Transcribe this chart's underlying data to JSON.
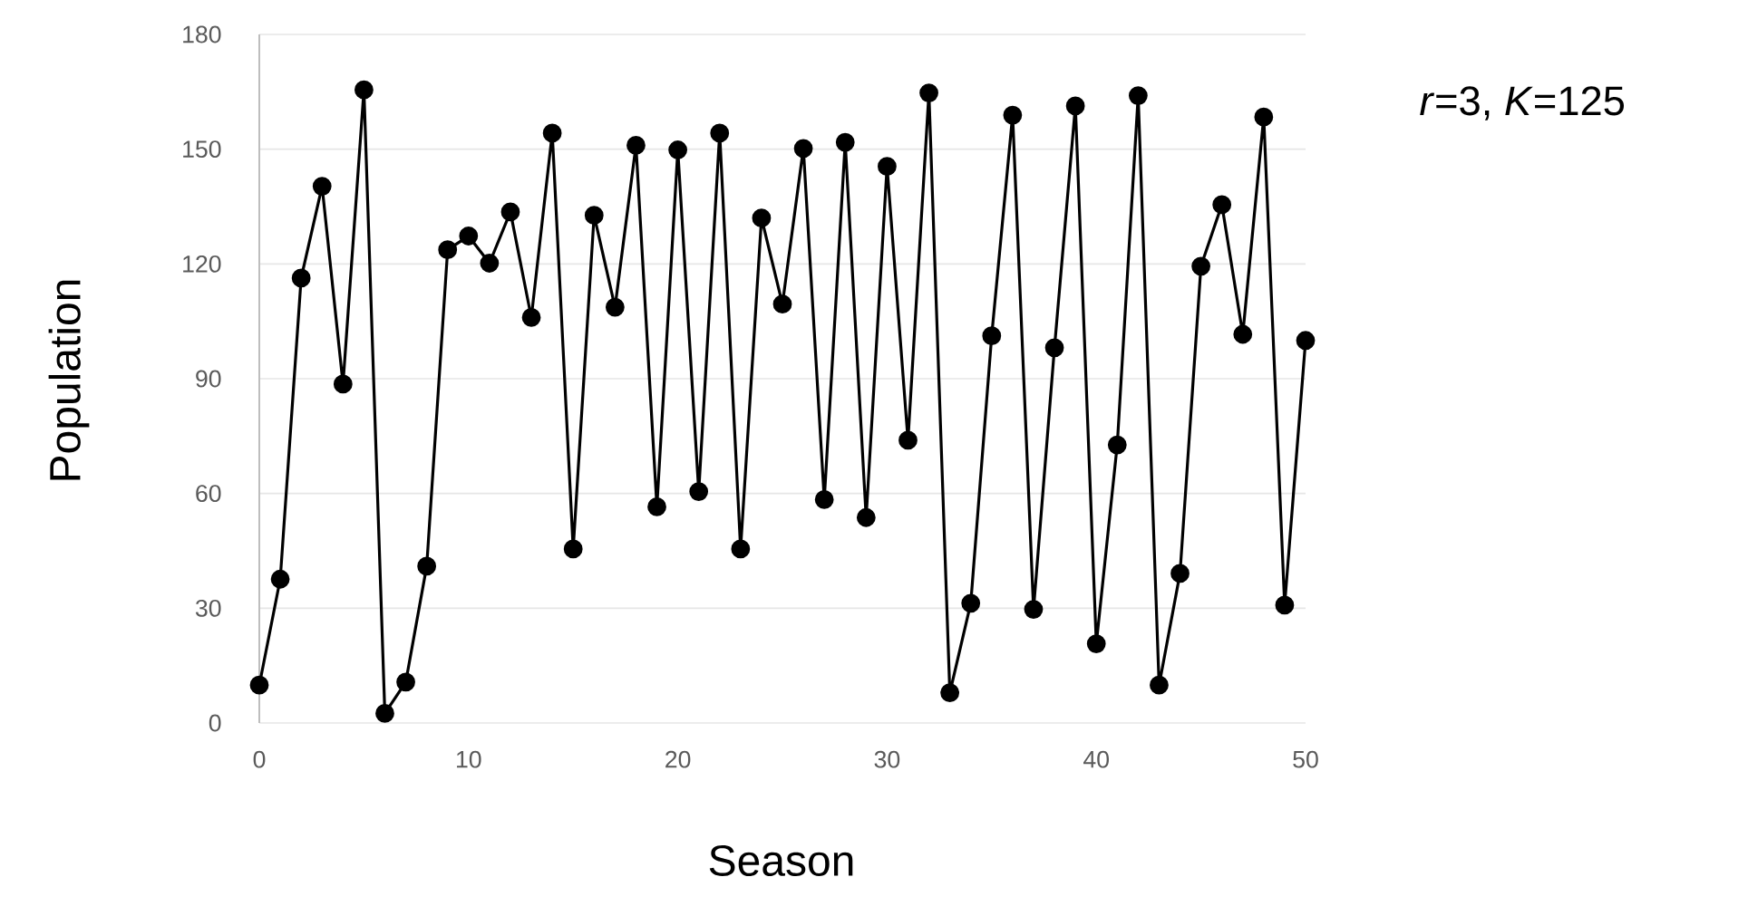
{
  "chart_data": {
    "type": "line",
    "xlabel": "Season",
    "ylabel": "Population",
    "annotations": [
      "*r*=3, *K*=125"
    ],
    "x": [
      0,
      1,
      2,
      3,
      4,
      5,
      6,
      7,
      8,
      9,
      10,
      11,
      12,
      13,
      14,
      15,
      16,
      17,
      18,
      19,
      20,
      21,
      22,
      23,
      24,
      25,
      26,
      27,
      28,
      29,
      30,
      31,
      32,
      33,
      34,
      35,
      36,
      37,
      38,
      39,
      40,
      41,
      42,
      43,
      44,
      45,
      46,
      47,
      48,
      49,
      50
    ],
    "series": [
      {
        "color": "#000000",
        "values": [
          9.9,
          37.6,
          116.3,
          140.3,
          88.6,
          165.5,
          2.5,
          10.7,
          41,
          123.7,
          127.3,
          120.2,
          133.6,
          106,
          154.2,
          45.5,
          132.7,
          108.7,
          151,
          56.5,
          149.8,
          60.5,
          154.2,
          45.5,
          132,
          109.5,
          150.2,
          58.4,
          151.8,
          53.7,
          145.5,
          73.9,
          164.7,
          7.9,
          31.3,
          101.2,
          158.9,
          29.7,
          98.1,
          161.3,
          20.7,
          72.7,
          164,
          9.9,
          39.1,
          119.4,
          135.5,
          101.6,
          158.4,
          30.8,
          100
        ]
      }
    ],
    "xlim": [
      0,
      50
    ],
    "xticks": [
      0,
      10,
      20,
      30,
      40,
      50
    ],
    "ylim": [
      0,
      180
    ],
    "yticks": [
      0,
      30,
      60,
      90,
      120,
      150,
      180
    ],
    "grid": "y",
    "marker": "circle",
    "line_style": "solid"
  }
}
